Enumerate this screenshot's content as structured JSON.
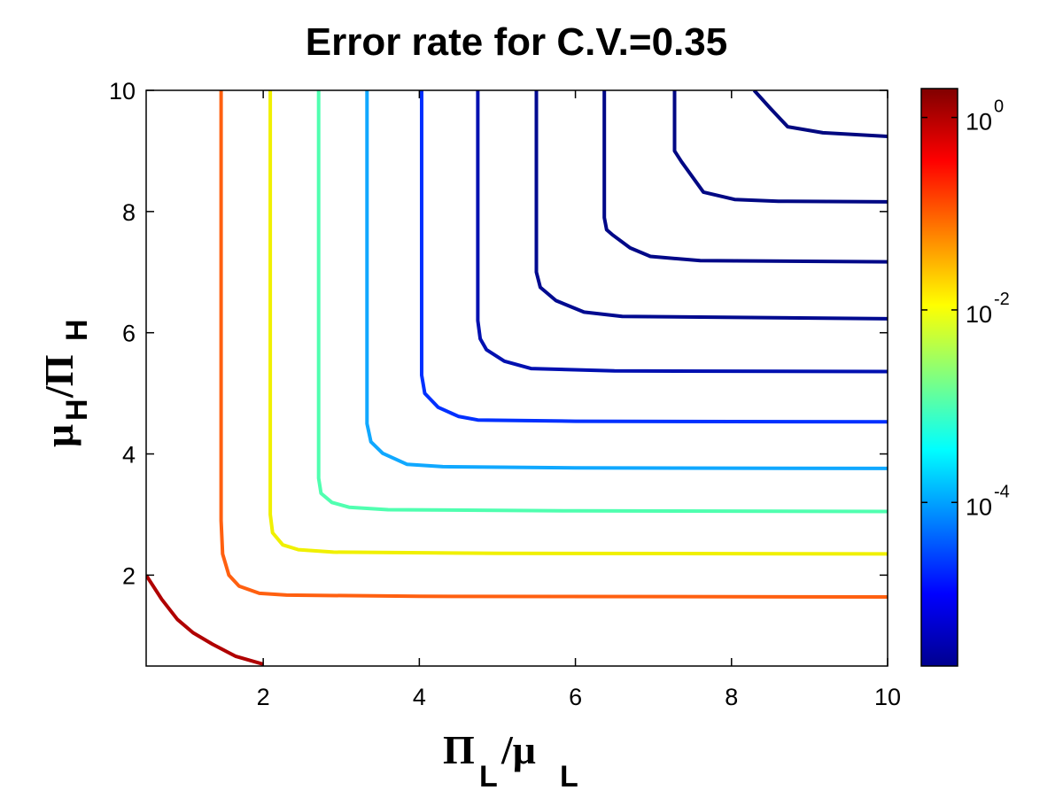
{
  "chart_data": {
    "type": "contour",
    "title": "Error rate for C.V.=0.35",
    "xlabel": {
      "main": "Π",
      "sub1": "L",
      "mid": "/μ",
      "sub2": "L"
    },
    "ylabel": {
      "main": "μ",
      "sub1": "H",
      "mid": "/Π",
      "sub2": "H"
    },
    "xlim": [
      0.5,
      10
    ],
    "ylim": [
      0.5,
      10
    ],
    "xticks": [
      2,
      4,
      6,
      8,
      10
    ],
    "yticks": [
      2,
      4,
      6,
      8,
      10
    ],
    "colorbar": {
      "scale": "log",
      "log10_range": [
        -5.7,
        0.3
      ],
      "ticks": [
        {
          "exp": 0,
          "base": "10",
          "sup": "0"
        },
        {
          "exp": -2,
          "base": "10",
          "sup": "-2"
        },
        {
          "exp": -4,
          "base": "10",
          "sup": "-4"
        }
      ],
      "colormap": [
        "#00008f",
        "#0000ff",
        "#0080ff",
        "#00ffff",
        "#80ff80",
        "#ffff00",
        "#ff8000",
        "#ff0000",
        "#800000"
      ]
    },
    "contours": [
      {
        "color": "#b00000",
        "points": [
          [
            0.5,
            2.0
          ],
          [
            0.7,
            1.6
          ],
          [
            0.9,
            1.27
          ],
          [
            1.1,
            1.05
          ],
          [
            1.35,
            0.86
          ],
          [
            1.65,
            0.66
          ],
          [
            2.0,
            0.53
          ]
        ]
      },
      {
        "color": "#ff6010",
        "points": [
          [
            1.46,
            10
          ],
          [
            1.46,
            2.9
          ],
          [
            1.48,
            2.35
          ],
          [
            1.56,
            2.0
          ],
          [
            1.69,
            1.82
          ],
          [
            1.95,
            1.7
          ],
          [
            2.3,
            1.67
          ],
          [
            4,
            1.65
          ],
          [
            10,
            1.64
          ]
        ]
      },
      {
        "color": "#f0f000",
        "points": [
          [
            2.09,
            10
          ],
          [
            2.09,
            3.0
          ],
          [
            2.12,
            2.7
          ],
          [
            2.25,
            2.5
          ],
          [
            2.45,
            2.42
          ],
          [
            2.9,
            2.38
          ],
          [
            5,
            2.36
          ],
          [
            10,
            2.35
          ]
        ]
      },
      {
        "color": "#50ffb0",
        "points": [
          [
            2.71,
            10
          ],
          [
            2.71,
            3.6
          ],
          [
            2.74,
            3.35
          ],
          [
            2.88,
            3.2
          ],
          [
            3.1,
            3.12
          ],
          [
            3.6,
            3.08
          ],
          [
            6,
            3.06
          ],
          [
            10,
            3.05
          ]
        ]
      },
      {
        "color": "#10a8ff",
        "points": [
          [
            3.33,
            10
          ],
          [
            3.33,
            4.5
          ],
          [
            3.38,
            4.2
          ],
          [
            3.53,
            4.01
          ],
          [
            3.84,
            3.83
          ],
          [
            4.3,
            3.79
          ],
          [
            6,
            3.77
          ],
          [
            10,
            3.76
          ]
        ]
      },
      {
        "color": "#0030ff",
        "points": [
          [
            4.03,
            10
          ],
          [
            4.03,
            5.3
          ],
          [
            4.07,
            5.0
          ],
          [
            4.24,
            4.77
          ],
          [
            4.5,
            4.62
          ],
          [
            4.75,
            4.56
          ],
          [
            6,
            4.54
          ],
          [
            10,
            4.53
          ]
        ]
      },
      {
        "color": "#0010b0",
        "points": [
          [
            4.75,
            10
          ],
          [
            4.75,
            6.2
          ],
          [
            4.78,
            5.9
          ],
          [
            4.86,
            5.72
          ],
          [
            5.09,
            5.53
          ],
          [
            5.43,
            5.41
          ],
          [
            6.5,
            5.37
          ],
          [
            10,
            5.36
          ]
        ]
      },
      {
        "color": "#000a90",
        "points": [
          [
            5.5,
            10
          ],
          [
            5.5,
            7.0
          ],
          [
            5.55,
            6.75
          ],
          [
            5.75,
            6.53
          ],
          [
            6.11,
            6.34
          ],
          [
            6.6,
            6.27
          ],
          [
            10,
            6.23
          ]
        ]
      },
      {
        "color": "#000888",
        "points": [
          [
            6.37,
            10
          ],
          [
            6.37,
            7.9
          ],
          [
            6.4,
            7.7
          ],
          [
            6.47,
            7.62
          ],
          [
            6.7,
            7.4
          ],
          [
            6.96,
            7.26
          ],
          [
            7.6,
            7.19
          ],
          [
            10,
            7.17
          ]
        ]
      },
      {
        "color": "#000884",
        "points": [
          [
            7.27,
            10
          ],
          [
            7.27,
            9.0
          ],
          [
            7.36,
            8.82
          ],
          [
            7.64,
            8.32
          ],
          [
            8.04,
            8.2
          ],
          [
            8.6,
            8.17
          ],
          [
            10,
            8.16
          ]
        ]
      },
      {
        "color": "#000880",
        "points": [
          [
            8.29,
            10
          ],
          [
            8.5,
            9.7
          ],
          [
            8.72,
            9.4
          ],
          [
            9.17,
            9.3
          ],
          [
            10,
            9.24
          ]
        ]
      }
    ]
  }
}
